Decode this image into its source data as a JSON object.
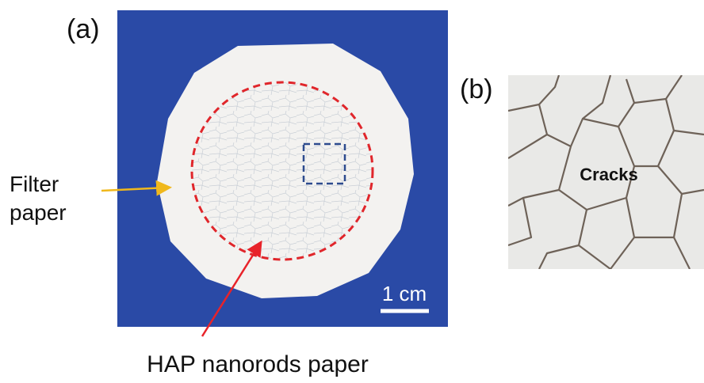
{
  "panel_a": {
    "label": "(a)",
    "filter_label": [
      "Filter",
      "paper"
    ],
    "scale_bar": "1 cm",
    "hap_label": "HAP nanorods paper"
  },
  "panel_b": {
    "label": "(b)",
    "annotation": "Cracks"
  }
}
